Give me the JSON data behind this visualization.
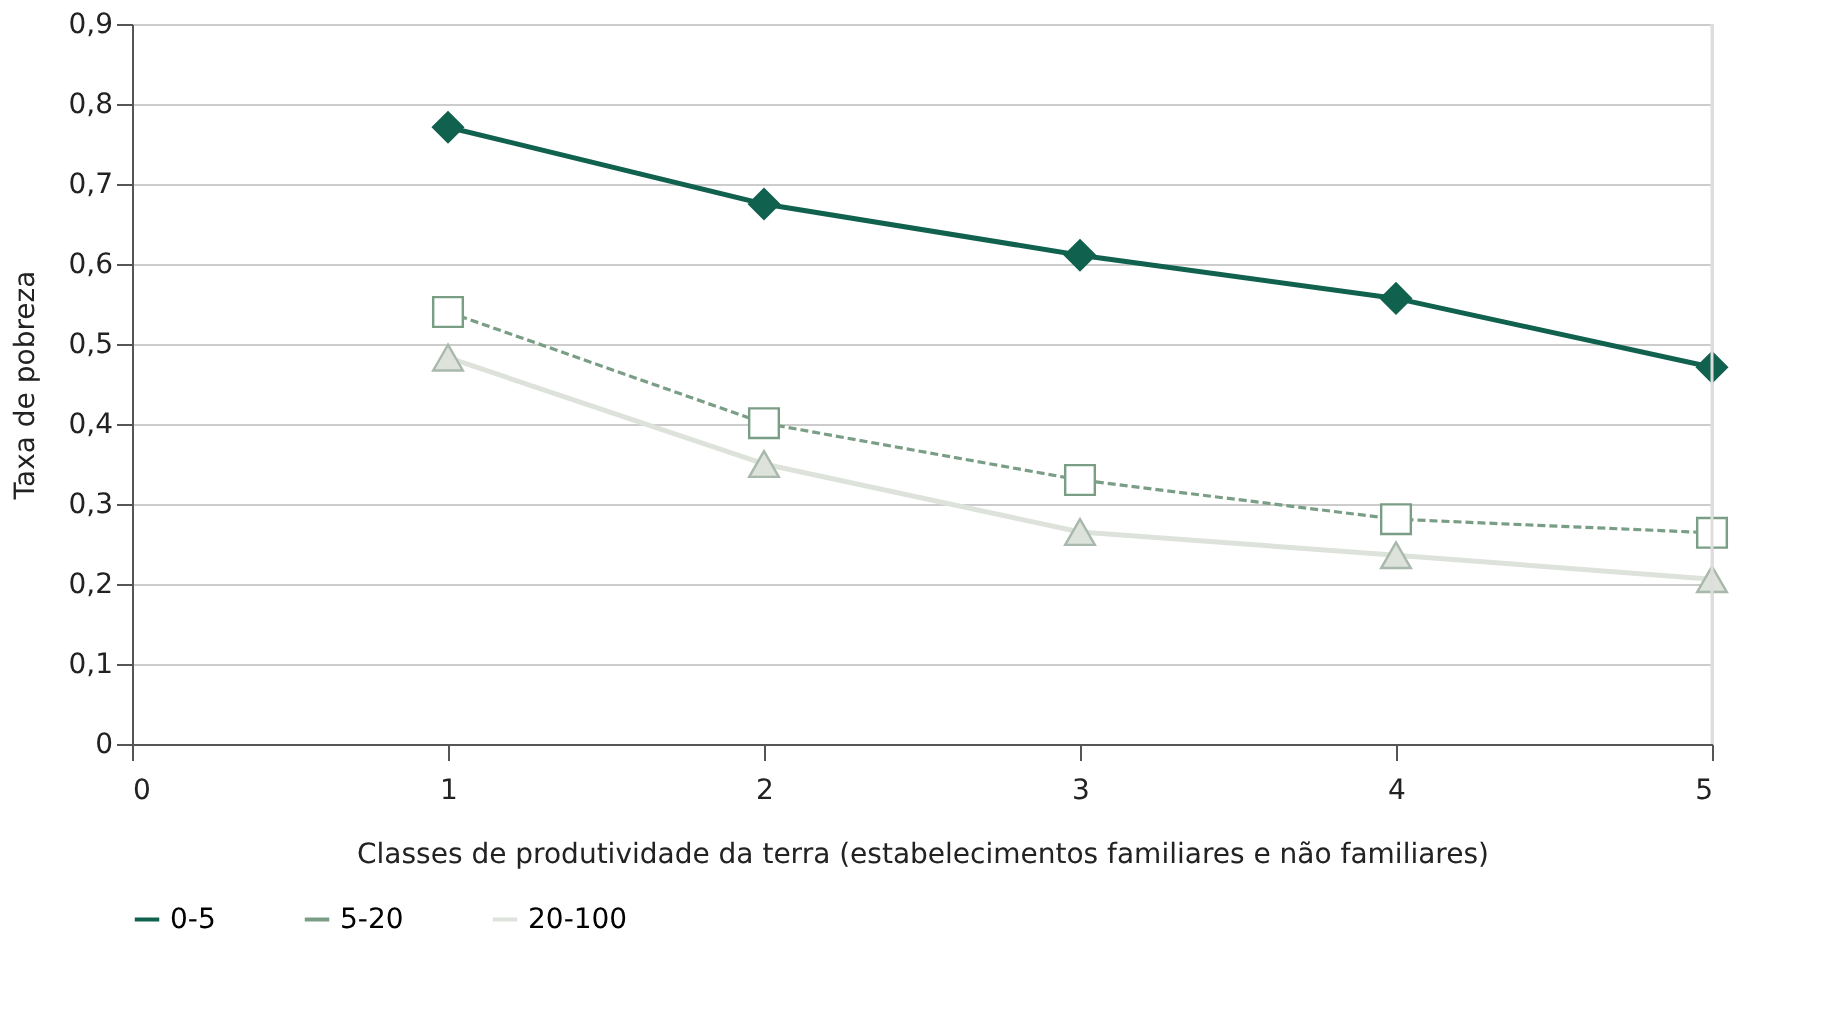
{
  "chart_data": {
    "type": "line",
    "xlabel": "Classes de produtividade da terra (estabelecimentos familiares e não familiares)",
    "ylabel": "Taxa de pobreza",
    "x": [
      1,
      2,
      3,
      4,
      5
    ],
    "series": [
      {
        "name": "0-5",
        "color": "#11614f",
        "marker": "diamond",
        "line_style": "solid",
        "values": [
          0.771,
          0.675,
          0.611,
          0.557,
          0.471
        ]
      },
      {
        "name": "5-20",
        "color": "#7a9e85",
        "marker": "square",
        "line_style": "dashed",
        "values": [
          0.54,
          0.401,
          0.33,
          0.281,
          0.264
        ]
      },
      {
        "name": "20-100",
        "color": "#dde3db",
        "marker": "triangle",
        "line_style": "solid",
        "values": [
          0.483,
          0.35,
          0.265,
          0.236,
          0.206
        ]
      }
    ],
    "xlim": [
      0,
      5
    ],
    "xticks": [
      0,
      1,
      2,
      3,
      4,
      5
    ],
    "ylim": [
      0,
      0.9
    ],
    "yticks": [
      0,
      {
        "value": 0.1,
        "label": "0,1"
      },
      {
        "value": 0.2,
        "label": "0,2"
      },
      {
        "value": 0.3,
        "label": "0,3"
      },
      {
        "value": 0.4,
        "label": "0,4"
      },
      {
        "value": 0.5,
        "label": "0,5"
      },
      {
        "value": 0.6,
        "label": "0,6"
      },
      {
        "value": 0.7,
        "label": "0,7"
      },
      {
        "value": 0.8,
        "label": "0,8"
      },
      {
        "value": 0.9,
        "label": "0,9"
      }
    ],
    "grid": "y",
    "legend": "bottom"
  }
}
